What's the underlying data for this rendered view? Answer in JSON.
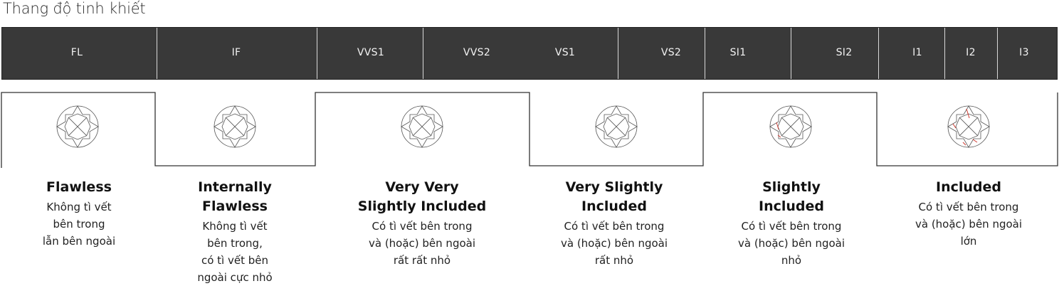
{
  "title": "Thang độ tinh khiết",
  "grades": [
    "FL",
    "IF",
    "VVS1",
    "VVS2",
    "VS1",
    "VS2",
    "SI1",
    "SI2",
    "I1",
    "I2",
    "I3"
  ],
  "groups": [
    {
      "name_lines": [
        "Flawless"
      ],
      "desc_lines": [
        "Không tì vết",
        "bên trong",
        "lẫn bên ngoài"
      ],
      "diamond_icon": "clear-diamond-icon"
    },
    {
      "name_lines": [
        "Internally",
        "Flawless"
      ],
      "desc_lines": [
        "Không tì vết",
        "bên trong,",
        "có tì vết bên",
        "ngoài cực nhỏ"
      ],
      "diamond_icon": "clear-diamond-icon"
    },
    {
      "name_lines": [
        "Very Very",
        "Slightly Included"
      ],
      "desc_lines": [
        "Có tì vết bên trong",
        "và (hoặc) bên ngoài",
        "rất rất nhỏ"
      ],
      "diamond_icon": "clear-diamond-icon"
    },
    {
      "name_lines": [
        "Very Slightly",
        "Included"
      ],
      "desc_lines": [
        "Có tì vết bên trong",
        "và (hoặc) bên ngoài",
        "rất nhỏ"
      ],
      "diamond_icon": "clear-diamond-icon"
    },
    {
      "name_lines": [
        "Slightly",
        "Included"
      ],
      "desc_lines": [
        "Có tì vết bên trong",
        "và (hoặc) bên ngoài",
        "nhỏ"
      ],
      "diamond_icon": "small-inclusion-diamond-icon"
    },
    {
      "name_lines": [
        "Included"
      ],
      "desc_lines": [
        "Có tì vết bên trong",
        "và (hoặc) bên ngoài",
        "lớn"
      ],
      "diamond_icon": "large-inclusion-diamond-icon"
    }
  ],
  "colors": {
    "bar_background": "#393939",
    "bar_text": "#f2f2f2",
    "divider": "#d8d8d8",
    "step_line": "#333333",
    "diamond_line": "#555555",
    "inclusion": "#d0392f"
  }
}
